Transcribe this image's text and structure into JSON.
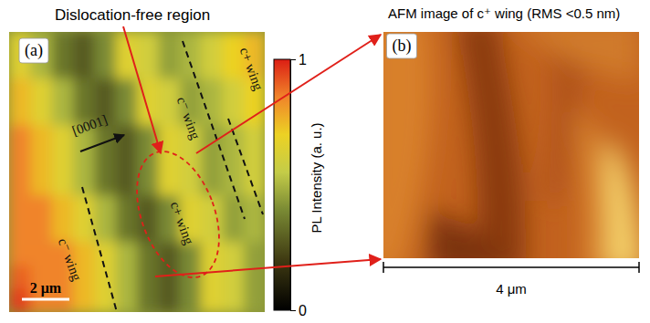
{
  "chart_data": {
    "type": "heatmap",
    "cells": [
      [
        0.65,
        0.5,
        0.35,
        0.28,
        0.4,
        0.65,
        0.6,
        0.45,
        0.5,
        0.6,
        0.7,
        0.75
      ],
      [
        0.65,
        0.5,
        0.35,
        0.28,
        0.4,
        0.65,
        0.6,
        0.45,
        0.5,
        0.6,
        0.7,
        0.75
      ],
      [
        0.75,
        0.65,
        0.5,
        0.35,
        0.28,
        0.4,
        0.65,
        0.6,
        0.45,
        0.5,
        0.6,
        0.7
      ],
      [
        0.75,
        0.65,
        0.5,
        0.35,
        0.28,
        0.4,
        0.65,
        0.6,
        0.45,
        0.5,
        0.6,
        0.7
      ],
      [
        0.85,
        0.75,
        0.65,
        0.5,
        0.35,
        0.28,
        0.4,
        0.65,
        0.6,
        0.45,
        0.5,
        0.6
      ],
      [
        0.85,
        0.75,
        0.65,
        0.5,
        0.35,
        0.28,
        0.4,
        0.65,
        0.6,
        0.45,
        0.5,
        0.6
      ],
      [
        0.85,
        0.75,
        0.65,
        0.5,
        0.35,
        0.28,
        0.4,
        0.65,
        0.6,
        0.45,
        0.5,
        0.6
      ],
      [
        0.85,
        0.85,
        0.75,
        0.65,
        0.5,
        0.35,
        0.28,
        0.4,
        0.65,
        0.6,
        0.45,
        0.5
      ],
      [
        0.85,
        0.85,
        0.75,
        0.65,
        0.5,
        0.35,
        0.28,
        0.4,
        0.65,
        0.6,
        0.45,
        0.5
      ],
      [
        0.85,
        0.85,
        0.85,
        0.75,
        0.65,
        0.5,
        0.35,
        0.28,
        0.4,
        0.65,
        0.6,
        0.45
      ],
      [
        0.9,
        0.85,
        0.85,
        0.75,
        0.65,
        0.5,
        0.35,
        0.28,
        0.4,
        0.65,
        0.6,
        0.45
      ],
      [
        0.95,
        0.85,
        0.85,
        0.75,
        0.65,
        0.5,
        0.35,
        0.28,
        0.4,
        0.65,
        0.6,
        0.45
      ]
    ],
    "colorbar": {
      "title": "PL Intensity (a. u.)",
      "range": [
        0,
        1
      ],
      "ticks": [
        0,
        1
      ]
    },
    "tick_labels": false
  },
  "panel_a": {
    "label": "(a)",
    "callout": "Dislocation-free region",
    "direction": "[0001]",
    "wing_labels": [
      "c⁻ wing",
      "c⁻ wing",
      "c+ wing",
      "c+ wing"
    ],
    "scale_bar": "2 μm"
  },
  "panel_b": {
    "label": "(b)",
    "title": "AFM image of c⁺ wing (RMS <0.5 nm)",
    "scale_bar": "4 μm"
  }
}
